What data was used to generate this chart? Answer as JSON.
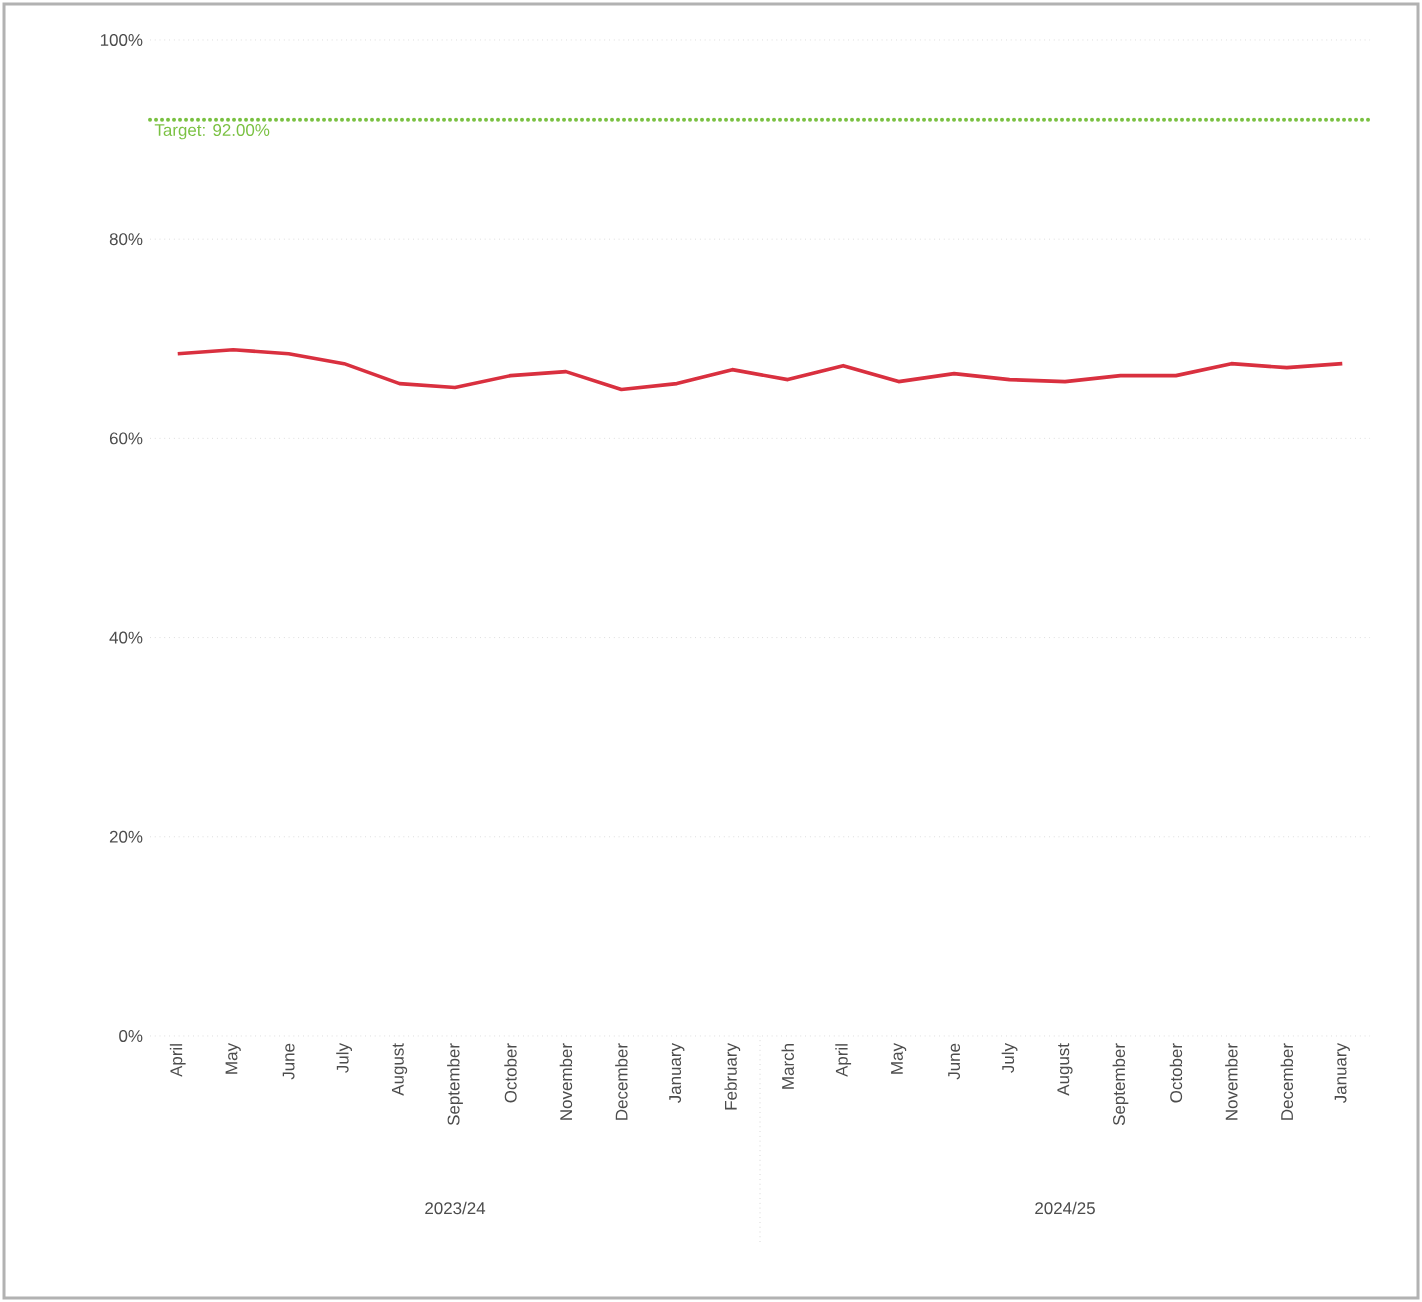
{
  "chart_data": {
    "type": "line",
    "categories": [
      "April",
      "May",
      "June",
      "July",
      "August",
      "September",
      "October",
      "November",
      "December",
      "January",
      "February",
      "March",
      "April",
      "May",
      "June",
      "July",
      "August",
      "September",
      "October",
      "November",
      "December",
      "January"
    ],
    "series": [
      {
        "color": "#d9303f",
        "values": [
          68.5,
          68.9,
          68.5,
          67.5,
          65.5,
          65.1,
          66.3,
          66.7,
          64.9,
          65.5,
          66.9,
          65.9,
          67.3,
          65.7,
          66.5,
          65.9,
          65.7,
          66.3,
          66.3,
          67.5,
          67.1,
          67.5
        ]
      }
    ],
    "ylim": [
      0,
      100
    ],
    "yticks": [
      {
        "value": 0,
        "label": "0%"
      },
      {
        "value": 20,
        "label": "20%"
      },
      {
        "value": 40,
        "label": "40%"
      },
      {
        "value": 60,
        "label": "60%"
      },
      {
        "value": 80,
        "label": "80%"
      },
      {
        "value": 100,
        "label": "100%"
      }
    ],
    "grid": "y",
    "marker": "none",
    "line_style": "solid",
    "ref_lines": [
      {
        "axis": "y",
        "value": 92,
        "label": "Target: 92.00%",
        "color": "#7ac142",
        "line_style": "dotted"
      }
    ],
    "annotations": [
      "2023/24",
      "2024/25"
    ]
  }
}
